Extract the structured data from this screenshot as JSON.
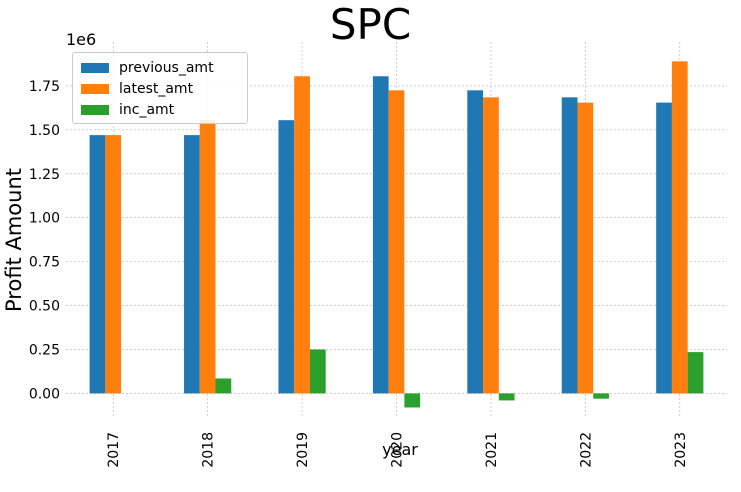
{
  "chart_data": {
    "type": "bar",
    "title": "SPC",
    "xlabel": "year",
    "ylabel": "Profit Amount",
    "y_offset_label": "1e6",
    "categories": [
      "2017",
      "2018",
      "2019",
      "2020",
      "2021",
      "2022",
      "2023"
    ],
    "series": [
      {
        "name": "previous_amt",
        "color": "#1f77b4",
        "values": [
          1470000,
          1470000,
          1555000,
          1805000,
          1725000,
          1685000,
          1655000
        ]
      },
      {
        "name": "latest_amt",
        "color": "#ff7f0e",
        "values": [
          1470000,
          1555000,
          1805000,
          1725000,
          1685000,
          1655000,
          1890000
        ]
      },
      {
        "name": "inc_amt",
        "color": "#2ca02c",
        "values": [
          0,
          85000,
          250000,
          -80000,
          -40000,
          -30000,
          235000
        ]
      }
    ],
    "yticks": [
      0,
      250000,
      500000,
      750000,
      1000000,
      1250000,
      1500000,
      1750000
    ],
    "ytick_labels": [
      "0.00",
      "0.25",
      "0.50",
      "0.75",
      "1.00",
      "1.25",
      "1.50",
      "1.75"
    ],
    "ylim": [
      -140000,
      2000000
    ],
    "grid": true,
    "legend_position": "top-left"
  }
}
